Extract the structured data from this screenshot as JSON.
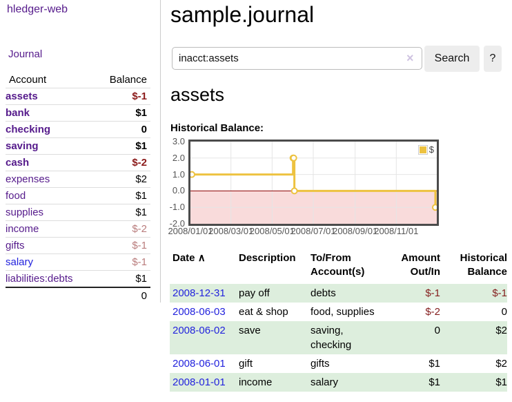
{
  "sidebar": {
    "app_title": "hledger-web",
    "journal_link": "Journal",
    "header": {
      "account": "Account",
      "balance": "Balance"
    },
    "accounts": [
      {
        "label": "assets",
        "balance": "$-1"
      },
      {
        "label": "bank",
        "balance": "$1"
      },
      {
        "label": "checking",
        "balance": "0"
      },
      {
        "label": "saving",
        "balance": "$1"
      },
      {
        "label": "cash",
        "balance": "$-2"
      },
      {
        "label": "expenses",
        "balance": "$2"
      },
      {
        "label": "food",
        "balance": "$1"
      },
      {
        "label": "supplies",
        "balance": "$1"
      },
      {
        "label": "income",
        "balance": "$-2"
      },
      {
        "label": "gifts",
        "balance": "$-1"
      },
      {
        "label": "salary",
        "balance": "$-1"
      },
      {
        "label": "liabilities:debts",
        "balance": "$1"
      }
    ],
    "total": "0"
  },
  "header": {
    "title": "sample.journal"
  },
  "search": {
    "value": "inacct:assets",
    "clear_icon": "×",
    "button_label": "Search",
    "help_label": "?"
  },
  "account_page": {
    "title": "assets",
    "chart_label": "Historical Balance:"
  },
  "chart_data": {
    "type": "line",
    "title": "Historical Balance",
    "legend": [
      {
        "label": "$",
        "color": "#edc240"
      }
    ],
    "series": [
      {
        "name": "$",
        "style": "step-with-markers",
        "points": [
          [
            "2008-01-01",
            1
          ],
          [
            "2008-06-01",
            2
          ],
          [
            "2008-06-02",
            2
          ],
          [
            "2008-06-03",
            0
          ],
          [
            "2008-12-31",
            -1
          ]
        ]
      }
    ],
    "x_ticks": [
      "2008/01/01",
      "2008/03/01",
      "2008/05/01",
      "2008/07/01",
      "2008/09/01",
      "2008/11/01"
    ],
    "y_ticks": [
      "3.0",
      "2.0",
      "1.0",
      "0.0",
      "-1.0",
      "-2.0"
    ],
    "xlim": [
      "2008-01-01",
      "2008-12-31"
    ],
    "ylim": [
      -2,
      3
    ],
    "grid": true,
    "legend_position": "top-right",
    "negative_region_color": "#f9dbdb",
    "zero_line_color": "#8b0000",
    "line_color": "#edc240",
    "grid_color": "#e5e5e5"
  },
  "register": {
    "sort_icon": "∧",
    "columns": [
      "Date",
      "Description",
      "To/From\nAccount(s)",
      "Amount\nOut/In",
      "Historical\nBalance"
    ],
    "rows": [
      {
        "date": "2008-12-31",
        "description": "pay off",
        "accounts": "debts",
        "amount": "$-1",
        "balance": "$-1"
      },
      {
        "date": "2008-06-03",
        "description": "eat & shop",
        "accounts": "food, supplies",
        "amount": "$-2",
        "balance": "0"
      },
      {
        "date": "2008-06-02",
        "description": "save",
        "accounts": "saving,\nchecking",
        "amount": "0",
        "balance": "$2"
      },
      {
        "date": "2008-06-01",
        "description": "gift",
        "accounts": "gifts",
        "amount": "$1",
        "balance": "$2"
      },
      {
        "date": "2008-01-01",
        "description": "income",
        "accounts": "salary",
        "amount": "$1",
        "balance": "$1"
      }
    ]
  },
  "colors": {
    "link_purple": "#551a8b",
    "link_blue": "#2222dd",
    "negative_strong": "#8b1a1a",
    "negative_soft": "#b97c7c",
    "row_green": "#ddeedd",
    "chart_line": "#edc240",
    "chart_negative_region": "#f9dbdb",
    "chart_zero_line": "#8b0000"
  }
}
